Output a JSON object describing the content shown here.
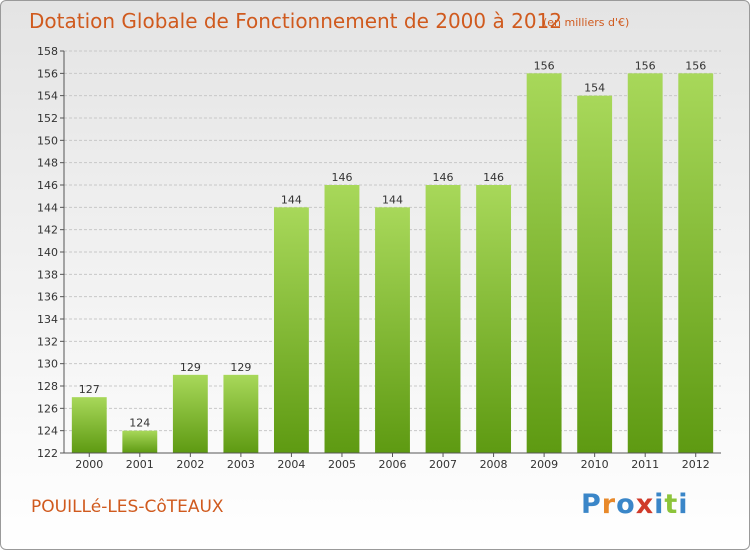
{
  "header": {
    "title": "Dotation Globale de Fonctionnement de 2000 à 2012",
    "unit": "(en milliers d'€)"
  },
  "footer": {
    "commune": "POUILLé-LES-CôTEAUX",
    "logo_letters": [
      "P",
      "r",
      "o",
      "x",
      "i",
      "t",
      "i"
    ]
  },
  "colors": {
    "title": "#d05a1e",
    "bar_top": "#a8d85a",
    "bar_bottom": "#5e9a12",
    "grid": "#c8c8c8",
    "logo": [
      "#3a86c8",
      "#e8892a",
      "#3a86c8",
      "#d03a2a",
      "#3a86c8",
      "#8cc43a",
      "#3a86c8"
    ]
  },
  "chart_data": {
    "type": "bar",
    "title": "Dotation Globale de Fonctionnement de 2000 à 2012",
    "unit": "(en milliers d'€)",
    "categories": [
      "2000",
      "2001",
      "2002",
      "2003",
      "2004",
      "2005",
      "2006",
      "2007",
      "2008",
      "2009",
      "2010",
      "2011",
      "2012"
    ],
    "values": [
      127,
      124,
      129,
      129,
      144,
      146,
      144,
      146,
      146,
      156,
      154,
      156,
      156
    ],
    "data_labels": [
      "127",
      "124",
      "129",
      "129",
      "144",
      "146",
      "144",
      "146",
      "146",
      "156",
      "154",
      "156",
      "156"
    ],
    "ylim": [
      122,
      158
    ],
    "yticks": [
      122,
      124,
      126,
      128,
      130,
      132,
      134,
      136,
      138,
      140,
      142,
      144,
      146,
      148,
      150,
      152,
      154,
      156,
      158
    ],
    "grid": true,
    "legend": "none"
  }
}
